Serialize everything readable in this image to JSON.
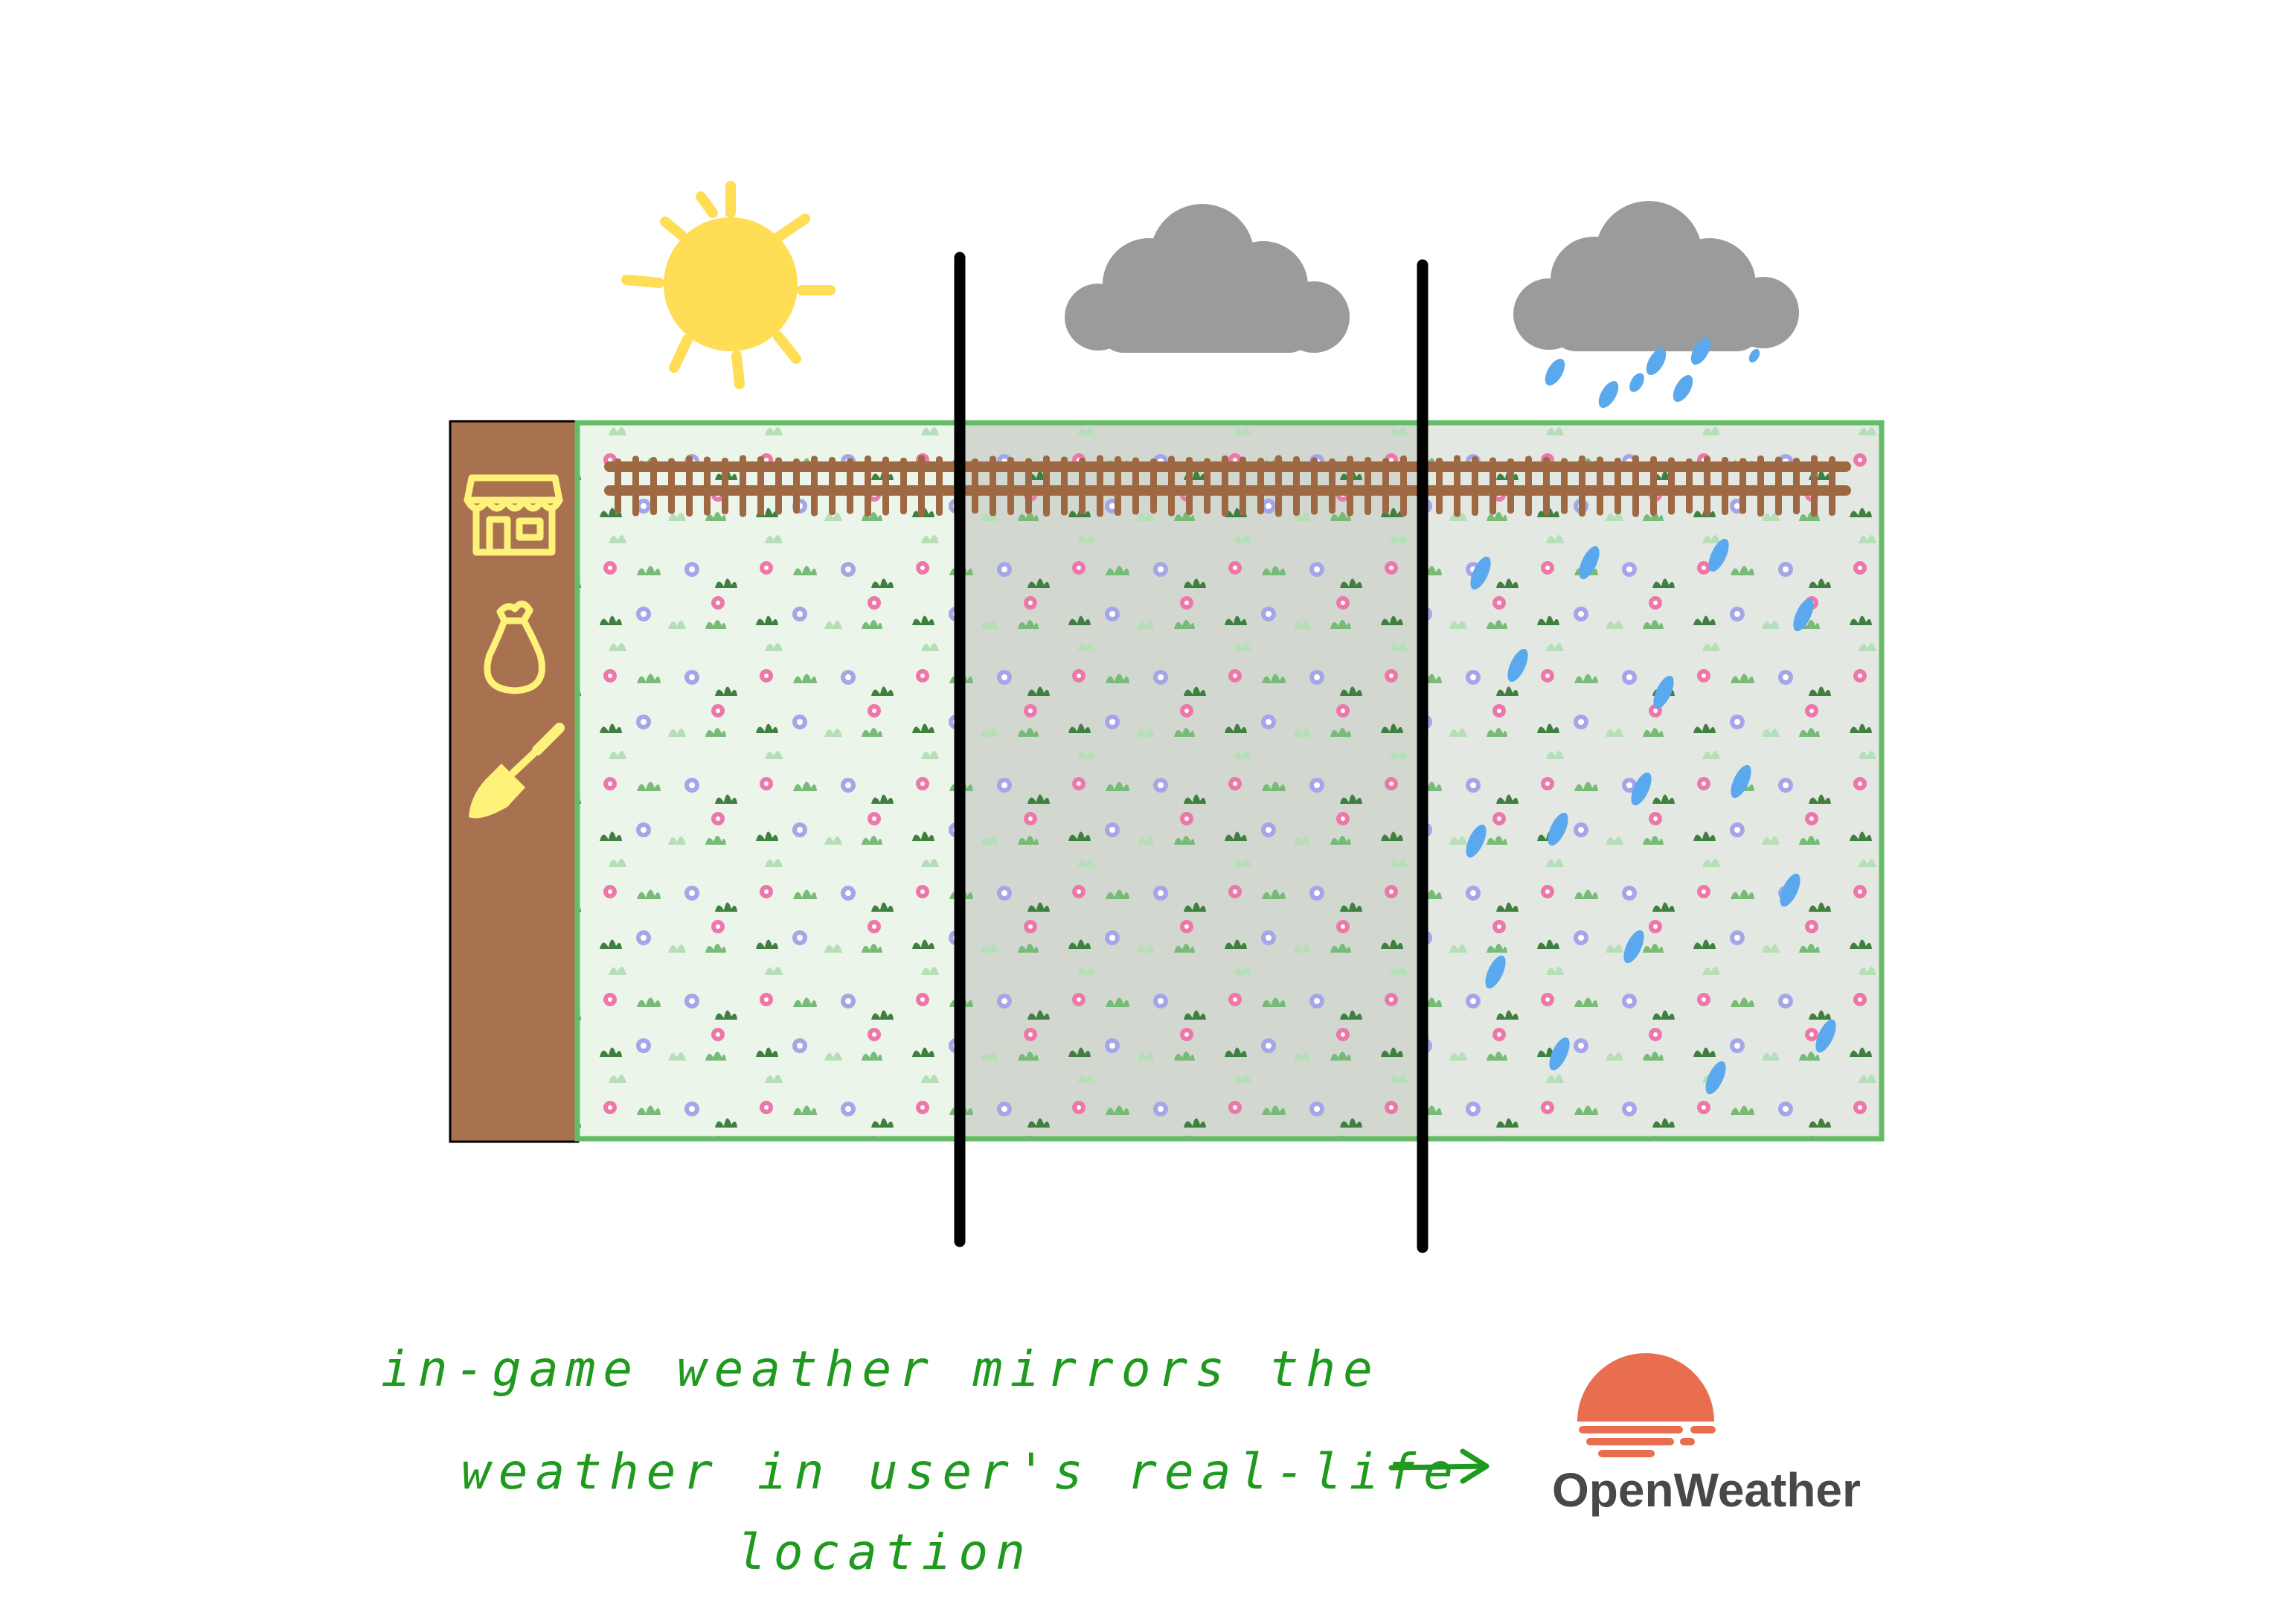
{
  "toolbar": {
    "shop_icon": "shop-icon",
    "seed_bag_icon": "seed-bag-icon",
    "shovel_icon": "shovel-icon",
    "color": "#a87250",
    "icon_color": "#fff27a"
  },
  "weather_zones": [
    {
      "condition": "sunny",
      "icon": "sun-icon",
      "tint": "#ebf5ea"
    },
    {
      "condition": "cloudy",
      "icon": "cloud-icon",
      "tint": "#d2d8d0"
    },
    {
      "condition": "rainy",
      "icon": "rain-cloud-icon",
      "tint": "#e3e9e2"
    }
  ],
  "annotation": {
    "line1": "in-game weather mirrors the",
    "line2": "weather in user's real-life",
    "line3": "location",
    "arrow_icon": "arrow-right-icon"
  },
  "brand": {
    "name": "OpenWeather",
    "logo_icon": "openweather-sun-icon",
    "logo_color": "#e96e50"
  },
  "colors": {
    "sun": "#ffdd55",
    "cloud": "#9b9b9b",
    "rain": "#5aa9ee",
    "fence": "#9e6843",
    "grass_border": "#66bb66",
    "flower_pink": "#ee77aa",
    "flower_blue": "#a4a6e8",
    "leaf_dark": "#3f7f3f",
    "leaf_light": "#80c080"
  }
}
